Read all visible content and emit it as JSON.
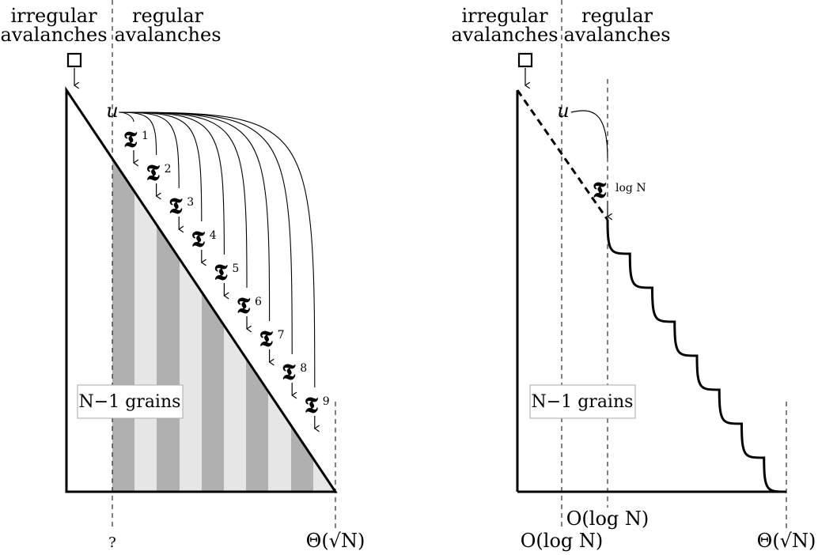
{
  "left_panel": {
    "header_irregular": [
      "irregular",
      "avalanches"
    ],
    "header_regular": [
      "regular",
      "avalanches"
    ],
    "vertex_label": "u",
    "tau_symbol": "𝕿",
    "tau_indices": [
      "1",
      "2",
      "3",
      "4",
      "5",
      "6",
      "7",
      "8",
      "9"
    ],
    "grains_label": "N−1 grains",
    "bottom_left_label": "?",
    "bottom_right_label": "Θ(√N)",
    "stripe_colors": [
      "#b0b0b0",
      "#e6e6e6"
    ]
  },
  "right_panel": {
    "header_irregular": [
      "irregular",
      "avalanches"
    ],
    "header_regular": [
      "regular",
      "avalanches"
    ],
    "vertex_label": "u",
    "tau_symbol": "𝕿",
    "tau_index": "log N",
    "grains_label": "N−1 grains",
    "label_olog_low": "O(log N)",
    "label_olog_high": "O(log N)",
    "bottom_right_label": "Θ(√N)"
  }
}
